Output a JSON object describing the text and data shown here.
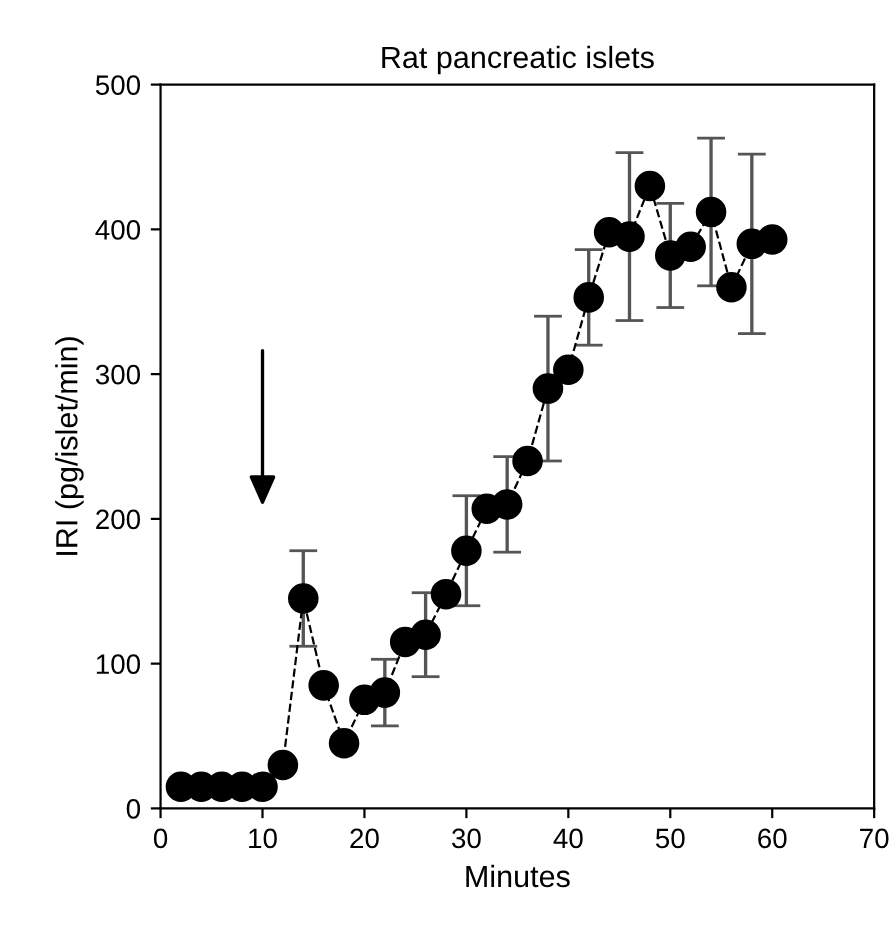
{
  "chart_data": {
    "type": "line",
    "title": "Rat pancreatic islets",
    "xlabel": "Minutes",
    "ylabel": "IRI (pg/islet/min)",
    "x": [
      2,
      4,
      6,
      8,
      10,
      12,
      14,
      16,
      18,
      20,
      22,
      24,
      26,
      28,
      30,
      32,
      34,
      36,
      38,
      40,
      42,
      44,
      46,
      48,
      50,
      52,
      54,
      56,
      58,
      60
    ],
    "series": [
      {
        "color": "#000000",
        "values": [
          15,
          15,
          15,
          15,
          15,
          30,
          145,
          85,
          45,
          75,
          80,
          115,
          120,
          148,
          178,
          207,
          210,
          240,
          290,
          303,
          353,
          398,
          395,
          430,
          382,
          388,
          412,
          360,
          390,
          393
        ],
        "errors": [
          null,
          null,
          null,
          null,
          null,
          null,
          33,
          null,
          null,
          null,
          23,
          null,
          29,
          null,
          38,
          null,
          33,
          null,
          50,
          null,
          33,
          null,
          58,
          null,
          36,
          null,
          51,
          null,
          62,
          null
        ]
      }
    ],
    "xlim": [
      0,
      70
    ],
    "xticks": [
      0,
      10,
      20,
      30,
      40,
      50,
      60,
      70
    ],
    "ylim": [
      0,
      500
    ],
    "yticks": [
      0,
      100,
      200,
      300,
      400,
      500
    ],
    "marker": "circle",
    "line_style": "dashed",
    "grid": false,
    "legend": false
  }
}
